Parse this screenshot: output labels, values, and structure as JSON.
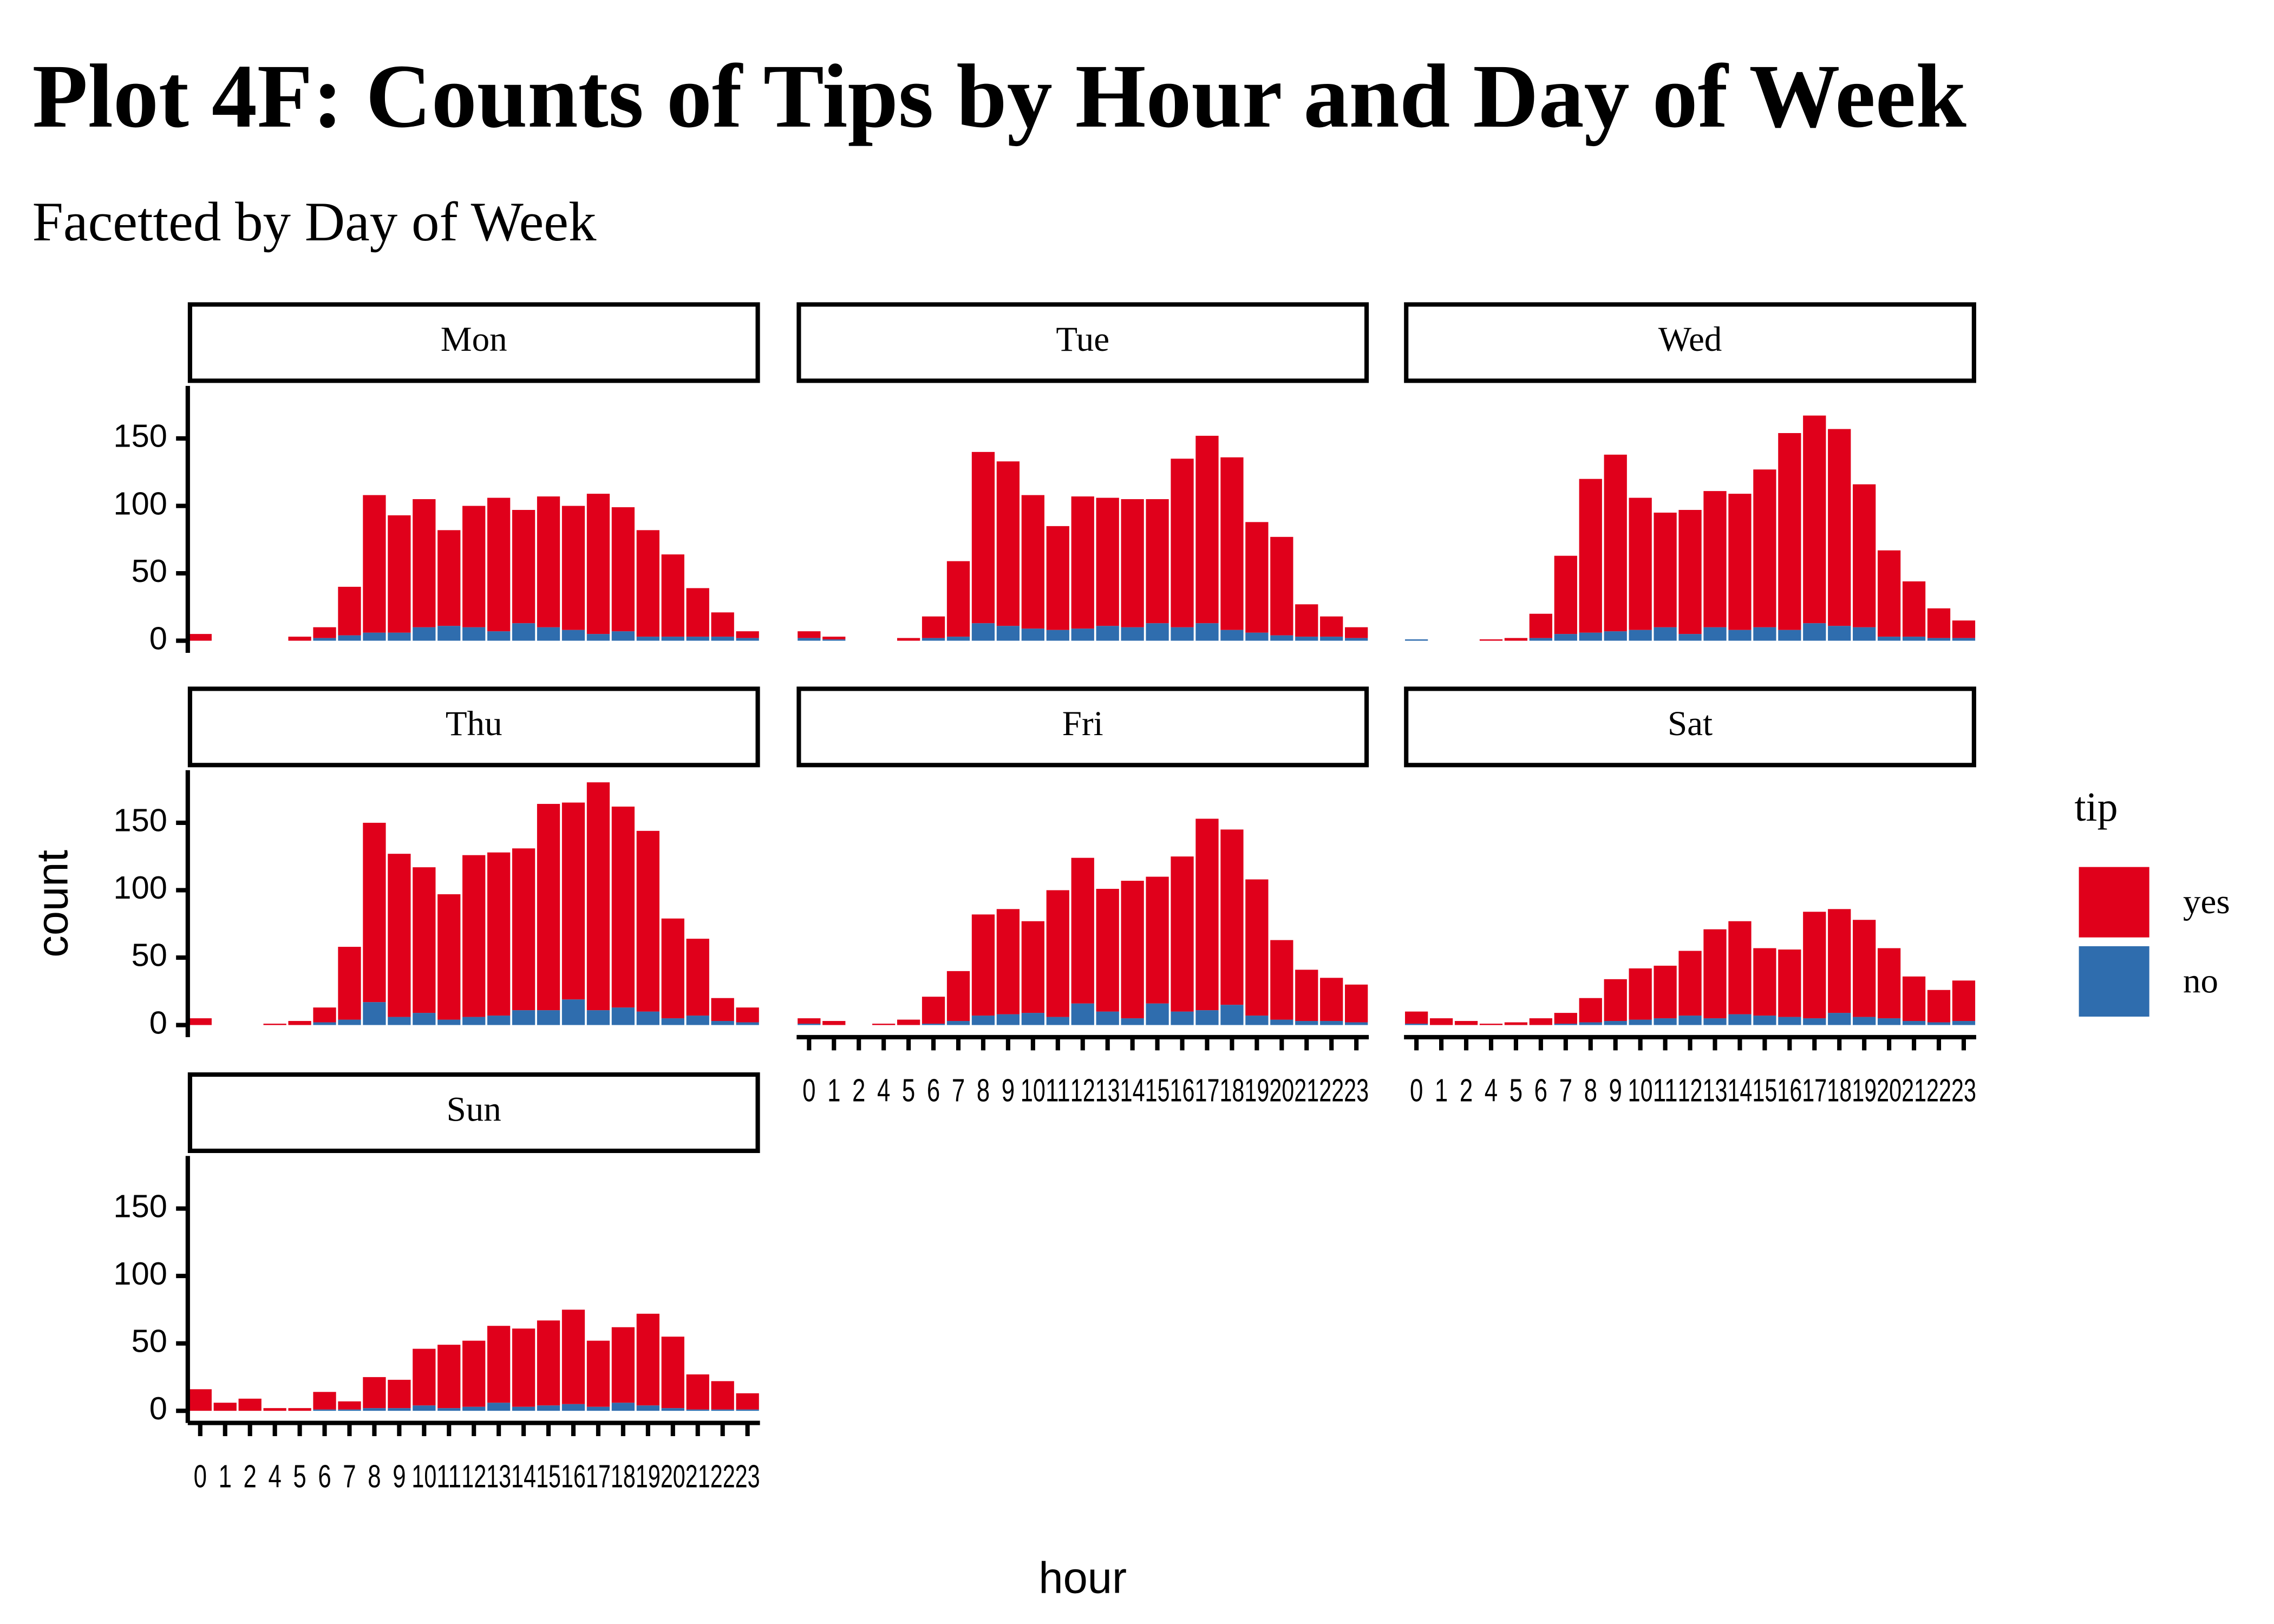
{
  "chart_data": {
    "type": "bar",
    "stacked": true,
    "title": "Plot 4F: Counts of Tips by Hour and Day of Week",
    "subtitle": "Facetted by Day of Week",
    "x_label": "hour",
    "y_label": "count",
    "legend_title": "tip",
    "categories": [
      0,
      1,
      2,
      4,
      5,
      6,
      7,
      8,
      9,
      10,
      11,
      12,
      13,
      14,
      15,
      16,
      17,
      18,
      19,
      20,
      21,
      22,
      23
    ],
    "facets": [
      "Mon",
      "Tue",
      "Wed",
      "Thu",
      "Fri",
      "Sat",
      "Sun"
    ],
    "series": [
      {
        "name": "yes",
        "color": "#E0001B",
        "values": [
          [
            5,
            0,
            0,
            0,
            3,
            8,
            36,
            102,
            87,
            95,
            71,
            90,
            99,
            84,
            97,
            92,
            104,
            92,
            79,
            61,
            36,
            18,
            5
          ],
          [
            5,
            2,
            0,
            0,
            2,
            16,
            56,
            127,
            122,
            99,
            77,
            98,
            95,
            95,
            92,
            125,
            139,
            128,
            82,
            73,
            24,
            15,
            8
          ],
          [
            0,
            0,
            0,
            1,
            2,
            18,
            58,
            114,
            131,
            98,
            85,
            92,
            101,
            101,
            117,
            146,
            154,
            146,
            106,
            64,
            41,
            22,
            13
          ],
          [
            5,
            0,
            0,
            1,
            3,
            11,
            54,
            133,
            121,
            108,
            93,
            120,
            121,
            120,
            153,
            146,
            169,
            149,
            134,
            74,
            57,
            17,
            11
          ],
          [
            4,
            3,
            0,
            1,
            4,
            20,
            37,
            75,
            78,
            68,
            94,
            108,
            91,
            102,
            94,
            115,
            142,
            130,
            101,
            59,
            38,
            32,
            28
          ],
          [
            9,
            5,
            3,
            1,
            2,
            5,
            8,
            18,
            31,
            38,
            39,
            48,
            66,
            69,
            50,
            50,
            79,
            77,
            72,
            52,
            33,
            24,
            30
          ],
          [
            16,
            6,
            9,
            2,
            2,
            13,
            6,
            23,
            21,
            42,
            47,
            49,
            57,
            58,
            63,
            70,
            49,
            56,
            68,
            53,
            26,
            21,
            12
          ]
        ]
      },
      {
        "name": "no",
        "color": "#2F6DAE",
        "values": [
          [
            0,
            0,
            0,
            0,
            0,
            2,
            4,
            6,
            6,
            10,
            11,
            10,
            7,
            13,
            10,
            8,
            5,
            7,
            3,
            3,
            3,
            3,
            2
          ],
          [
            2,
            1,
            0,
            0,
            0,
            2,
            3,
            13,
            11,
            9,
            8,
            9,
            11,
            10,
            13,
            10,
            13,
            8,
            6,
            4,
            3,
            3,
            2
          ],
          [
            1,
            0,
            0,
            0,
            0,
            2,
            5,
            6,
            7,
            8,
            10,
            5,
            10,
            8,
            10,
            8,
            13,
            11,
            10,
            3,
            3,
            2,
            2
          ],
          [
            0,
            0,
            0,
            0,
            0,
            2,
            4,
            17,
            6,
            9,
            4,
            6,
            7,
            11,
            11,
            19,
            11,
            13,
            10,
            5,
            7,
            3,
            2
          ],
          [
            1,
            0,
            0,
            0,
            0,
            1,
            3,
            7,
            8,
            9,
            6,
            16,
            10,
            5,
            16,
            10,
            11,
            15,
            7,
            4,
            3,
            3,
            2
          ],
          [
            1,
            0,
            0,
            0,
            0,
            0,
            1,
            2,
            3,
            4,
            5,
            7,
            5,
            8,
            7,
            6,
            5,
            9,
            6,
            5,
            3,
            2,
            3
          ],
          [
            0,
            0,
            0,
            0,
            0,
            1,
            1,
            2,
            2,
            4,
            2,
            3,
            6,
            3,
            4,
            5,
            3,
            6,
            4,
            2,
            1,
            1,
            1
          ]
        ]
      }
    ],
    "ylim": [
      -9,
      189
    ],
    "yticks": [
      0,
      50,
      100,
      150
    ]
  }
}
